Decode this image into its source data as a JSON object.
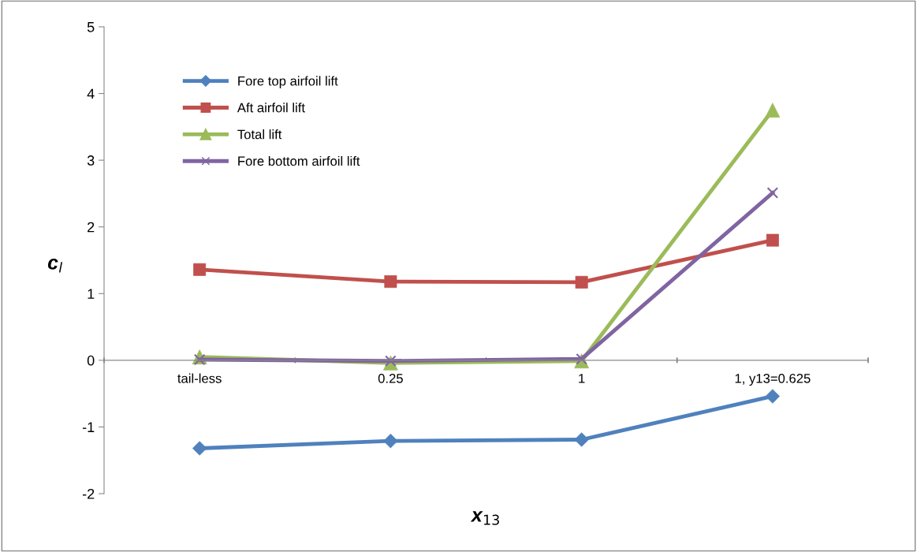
{
  "chart_data": {
    "type": "line",
    "xlabel": "x$_{13}$",
    "ylabel": "c$_{l}$",
    "categories": [
      "tail-less",
      "0.25",
      "1",
      "1, y13=0.625"
    ],
    "series": [
      {
        "name": "Fore top airfoil lift",
        "color": "#4f81bd",
        "marker": "diamond",
        "values": [
          -1.32,
          -1.21,
          -1.19,
          -0.54
        ]
      },
      {
        "name": "Aft airfoil lift",
        "color": "#c0504d",
        "marker": "square",
        "values": [
          1.36,
          1.18,
          1.17,
          1.8
        ]
      },
      {
        "name": "Total lift",
        "color": "#9bbb59",
        "marker": "triangle",
        "values": [
          0.05,
          -0.04,
          -0.01,
          3.75
        ]
      },
      {
        "name": "Fore bottom airfoil lift",
        "color": "#8064a2",
        "marker": "cross",
        "values": [
          0.01,
          -0.01,
          0.02,
          2.51
        ]
      }
    ],
    "ylim": [
      -2,
      5
    ],
    "yticks": [
      -2,
      -1,
      0,
      1,
      2,
      3,
      4,
      5
    ],
    "grid": false,
    "legend": "top left",
    "line_style": "solid"
  }
}
